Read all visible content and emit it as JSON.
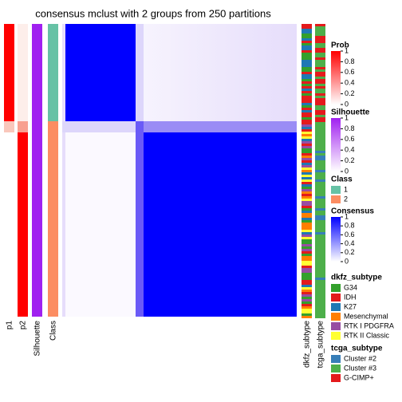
{
  "chart_data": {
    "type": "heatmap",
    "title": "consensus mclust with 2 groups from 250 partitions",
    "column_labels": [
      "p1",
      "p2",
      "Silhouette",
      "Class",
      "dkfz_subtype",
      "tcga_subtype"
    ],
    "legends": [
      {
        "title": "Prob",
        "color": "#ff0000",
        "ticks": [
          1,
          0.8,
          0.6,
          0.4,
          0.2,
          0
        ]
      },
      {
        "title": "Silhouette",
        "color": "#a020f0",
        "ticks": [
          1,
          0.8,
          0.6,
          0.4,
          0.2,
          0
        ]
      },
      {
        "title": "Class",
        "entries": [
          {
            "label": "1",
            "color": "#66c2a5"
          },
          {
            "label": "2",
            "color": "#fc8d62"
          }
        ]
      },
      {
        "title": "Consensus",
        "color": "#0000ff",
        "ticks": [
          1,
          0.8,
          0.6,
          0.4,
          0.2,
          0
        ]
      },
      {
        "title": "dkfz_subtype",
        "entries": [
          {
            "label": "G34",
            "color": "#33a02c"
          },
          {
            "label": "IDH",
            "color": "#e31a1c"
          },
          {
            "label": "K27",
            "color": "#1f78b4"
          },
          {
            "label": "Mesenchymal",
            "color": "#ff7f00"
          },
          {
            "label": "RTK I PDGFRA",
            "color": "#984ea3"
          },
          {
            "label": "RTK II Classic",
            "color": "#ffff33"
          }
        ]
      },
      {
        "title": "tcga_subtype",
        "entries": [
          {
            "label": "Cluster #2",
            "color": "#377eb8"
          },
          {
            "label": "Cluster #3",
            "color": "#4daf4a"
          },
          {
            "label": "G-CIMP+",
            "color": "#e41a1c"
          }
        ]
      }
    ]
  }
}
